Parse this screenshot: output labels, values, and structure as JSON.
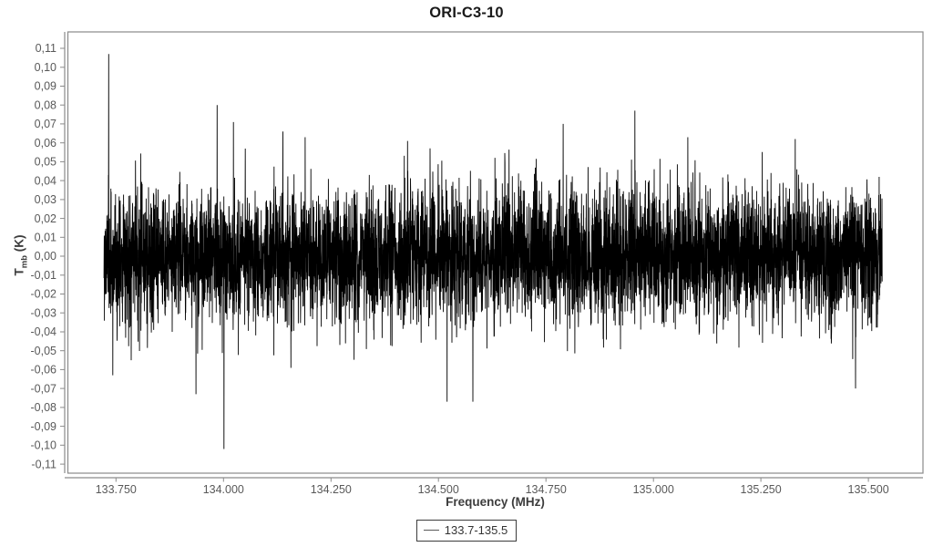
{
  "page": {
    "background": "#ffffff"
  },
  "chart_data": {
    "type": "line",
    "title": "ORI-C3-10",
    "xlabel": "Frequency (MHz)",
    "ylabel": {
      "main": "T",
      "sub": "mb",
      "unit": " (K)"
    },
    "grid": false,
    "legend": {
      "position": "bottom-center",
      "items": [
        {
          "label": "133.7-135.5",
          "line_color": "#595959"
        }
      ]
    },
    "x_axis": {
      "min": 133.638,
      "max": 135.627,
      "ticks": [
        {
          "value": 133.75,
          "label": "133.750"
        },
        {
          "value": 134.0,
          "label": "134.000"
        },
        {
          "value": 134.25,
          "label": "134.250"
        },
        {
          "value": 134.5,
          "label": "134.500"
        },
        {
          "value": 134.75,
          "label": "134.750"
        },
        {
          "value": 135.0,
          "label": "135.000"
        },
        {
          "value": 135.25,
          "label": "135.250"
        },
        {
          "value": 135.5,
          "label": "135.500"
        }
      ]
    },
    "y_axis": {
      "min": -0.1148,
      "max": 0.1187,
      "ticks": [
        {
          "value": 0.11,
          "label": "0,11"
        },
        {
          "value": 0.1,
          "label": "0,10"
        },
        {
          "value": 0.09,
          "label": "0,09"
        },
        {
          "value": 0.08,
          "label": "0,08"
        },
        {
          "value": 0.07,
          "label": "0,07"
        },
        {
          "value": 0.06,
          "label": "0,06"
        },
        {
          "value": 0.05,
          "label": "0,05"
        },
        {
          "value": 0.04,
          "label": "0,04"
        },
        {
          "value": 0.03,
          "label": "0,03"
        },
        {
          "value": 0.02,
          "label": "0,02"
        },
        {
          "value": 0.01,
          "label": "0,01"
        },
        {
          "value": 0.0,
          "label": "0,00"
        },
        {
          "value": -0.01,
          "label": "-0,01"
        },
        {
          "value": -0.02,
          "label": "-0,02"
        },
        {
          "value": -0.03,
          "label": "-0,03"
        },
        {
          "value": -0.04,
          "label": "-0,04"
        },
        {
          "value": -0.05,
          "label": "-0,05"
        },
        {
          "value": -0.06,
          "label": "-0,06"
        },
        {
          "value": -0.07,
          "label": "-0,07"
        },
        {
          "value": -0.08,
          "label": "-0,08"
        },
        {
          "value": -0.09,
          "label": "-0,09"
        },
        {
          "value": -0.1,
          "label": "-0,10"
        },
        {
          "value": -0.11,
          "label": "-0,11"
        }
      ]
    },
    "series": [
      {
        "name": "133.7-135.5",
        "color": "#000000",
        "x_start": 133.722,
        "x_end": 135.532,
        "baseline": 0.0,
        "noise_sigma": 0.0175,
        "tail_prob": 0.006,
        "tail_mult": 1.8,
        "n_points": 6000,
        "seed": 1234,
        "spikes": [
          {
            "x": 133.733,
            "y": 0.107
          },
          {
            "x": 133.936,
            "y": -0.073
          },
          {
            "x": 133.985,
            "y": 0.08
          },
          {
            "x": 134.001,
            "y": -0.102
          },
          {
            "x": 134.023,
            "y": 0.071
          },
          {
            "x": 134.138,
            "y": 0.066
          },
          {
            "x": 134.19,
            "y": 0.063
          },
          {
            "x": 134.428,
            "y": 0.061
          },
          {
            "x": 134.52,
            "y": -0.077
          },
          {
            "x": 134.58,
            "y": -0.077
          },
          {
            "x": 134.79,
            "y": 0.07
          },
          {
            "x": 134.957,
            "y": 0.077
          },
          {
            "x": 135.08,
            "y": 0.063
          },
          {
            "x": 135.33,
            "y": 0.062
          },
          {
            "x": 135.47,
            "y": -0.07
          }
        ]
      }
    ],
    "colors": {
      "frame": "#8a8a8a",
      "tick_label": "#595959",
      "axis_label": "#3d3d3d",
      "title": "#1a1a1a",
      "legend_border": "#3c3c3c"
    }
  }
}
